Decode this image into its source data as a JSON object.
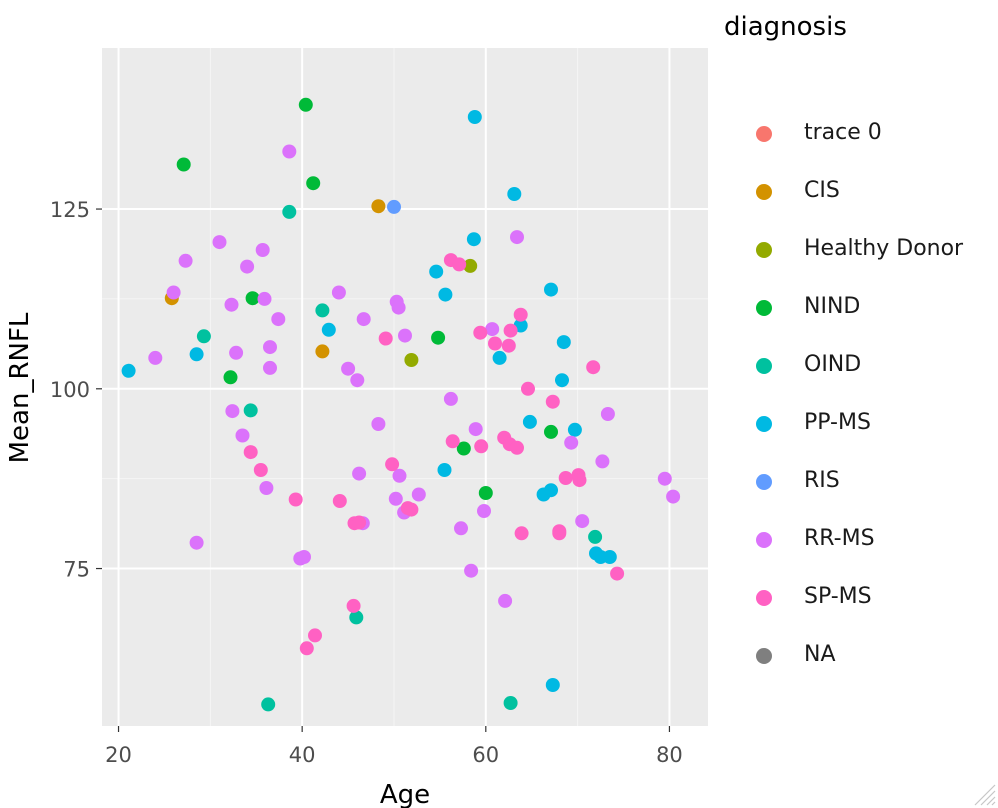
{
  "chart_data": {
    "type": "scatter",
    "xlabel": "Age",
    "ylabel": "Mean_RNFL",
    "xlim": [
      18.2,
      84.2
    ],
    "ylim": [
      53.1,
      147.4
    ],
    "xticks": [
      20,
      40,
      60,
      80
    ],
    "yticks": [
      75,
      100,
      125
    ],
    "grid": true,
    "legend_title": "diagnosis",
    "legend_position": "right",
    "legend": [
      {
        "name": "trace 0",
        "color": "#F8766D"
      },
      {
        "name": "CIS",
        "color": "#D39200"
      },
      {
        "name": "Healthy Donor",
        "color": "#93AA00"
      },
      {
        "name": "NIND",
        "color": "#00BA38"
      },
      {
        "name": "OIND",
        "color": "#00C19F"
      },
      {
        "name": "PP-MS",
        "color": "#00B9E3"
      },
      {
        "name": "RIS",
        "color": "#619CFF"
      },
      {
        "name": "RR-MS",
        "color": "#DB72FB"
      },
      {
        "name": "SP-MS",
        "color": "#FF61C3"
      },
      {
        "name": "NA",
        "color": "#7F7F7F"
      }
    ],
    "series": [
      {
        "name": "CIS",
        "color": "#D39200",
        "points": [
          [
            25.8,
            112.6
          ],
          [
            42.2,
            105.2
          ],
          [
            48.3,
            125.4
          ]
        ]
      },
      {
        "name": "Healthy Donor",
        "color": "#93AA00",
        "points": [
          [
            51.9,
            104.0
          ],
          [
            58.3,
            117.1
          ]
        ]
      },
      {
        "name": "NIND",
        "color": "#00BA38",
        "points": [
          [
            27.1,
            131.2
          ],
          [
            40.4,
            139.5
          ],
          [
            41.2,
            128.6
          ],
          [
            34.6,
            112.6
          ],
          [
            32.2,
            101.6
          ],
          [
            54.8,
            107.1
          ],
          [
            57.6,
            91.7
          ],
          [
            60.0,
            85.5
          ],
          [
            67.1,
            94.0
          ]
        ]
      },
      {
        "name": "OIND",
        "color": "#00C19F",
        "points": [
          [
            38.6,
            124.6
          ],
          [
            29.3,
            107.3
          ],
          [
            42.2,
            110.9
          ],
          [
            34.4,
            97.0
          ],
          [
            45.9,
            68.2
          ],
          [
            36.3,
            56.1
          ],
          [
            62.7,
            56.3
          ],
          [
            71.9,
            79.4
          ]
        ]
      },
      {
        "name": "PP-MS",
        "color": "#00B9E3",
        "points": [
          [
            21.1,
            102.5
          ],
          [
            28.5,
            104.8
          ],
          [
            42.9,
            108.2
          ],
          [
            58.8,
            137.8
          ],
          [
            63.1,
            127.1
          ],
          [
            58.7,
            120.8
          ],
          [
            54.6,
            116.3
          ],
          [
            55.6,
            113.1
          ],
          [
            63.8,
            108.8
          ],
          [
            61.5,
            104.3
          ],
          [
            67.1,
            113.8
          ],
          [
            68.5,
            106.5
          ],
          [
            68.3,
            101.2
          ],
          [
            69.7,
            94.3
          ],
          [
            64.8,
            95.4
          ],
          [
            55.5,
            88.7
          ],
          [
            66.3,
            85.3
          ],
          [
            67.1,
            85.9
          ],
          [
            72.0,
            77.1
          ],
          [
            72.5,
            76.6
          ],
          [
            73.5,
            76.6
          ],
          [
            67.3,
            58.8
          ]
        ]
      },
      {
        "name": "RIS",
        "color": "#619CFF",
        "points": [
          [
            50.0,
            125.3
          ]
        ]
      },
      {
        "name": "RR-MS",
        "color": "#DB72FB",
        "points": [
          [
            38.6,
            133.0
          ],
          [
            31.0,
            120.4
          ],
          [
            35.7,
            119.3
          ],
          [
            27.3,
            117.8
          ],
          [
            34.0,
            117.0
          ],
          [
            26.0,
            113.4
          ],
          [
            35.9,
            112.5
          ],
          [
            32.3,
            111.7
          ],
          [
            37.4,
            109.7
          ],
          [
            24.0,
            104.3
          ],
          [
            32.8,
            105.0
          ],
          [
            36.5,
            105.8
          ],
          [
            36.5,
            102.9
          ],
          [
            44.0,
            113.4
          ],
          [
            46.7,
            109.7
          ],
          [
            50.3,
            112.1
          ],
          [
            50.5,
            111.3
          ],
          [
            51.2,
            107.4
          ],
          [
            45.0,
            102.8
          ],
          [
            46.0,
            101.2
          ],
          [
            32.4,
            96.9
          ],
          [
            33.5,
            93.5
          ],
          [
            48.3,
            95.1
          ],
          [
            36.1,
            86.2
          ],
          [
            46.2,
            88.2
          ],
          [
            50.6,
            87.9
          ],
          [
            52.7,
            85.3
          ],
          [
            50.2,
            84.7
          ],
          [
            51.1,
            82.8
          ],
          [
            46.6,
            81.3
          ],
          [
            28.5,
            78.6
          ],
          [
            39.8,
            76.4
          ],
          [
            40.2,
            76.6
          ],
          [
            56.2,
            98.6
          ],
          [
            58.9,
            94.4
          ],
          [
            59.8,
            83.0
          ],
          [
            57.3,
            80.6
          ],
          [
            58.4,
            74.7
          ],
          [
            62.1,
            70.5
          ],
          [
            60.7,
            108.3
          ],
          [
            63.4,
            121.1
          ],
          [
            69.3,
            92.5
          ],
          [
            72.7,
            89.9
          ],
          [
            73.3,
            96.5
          ],
          [
            70.5,
            81.6
          ],
          [
            79.5,
            87.5
          ],
          [
            80.4,
            85.0
          ]
        ]
      },
      {
        "name": "SP-MS",
        "color": "#FF61C3",
        "points": [
          [
            34.4,
            91.2
          ],
          [
            35.5,
            88.7
          ],
          [
            39.3,
            84.6
          ],
          [
            44.1,
            84.4
          ],
          [
            45.7,
            81.3
          ],
          [
            46.2,
            81.4
          ],
          [
            49.1,
            107.0
          ],
          [
            49.8,
            89.5
          ],
          [
            51.5,
            83.4
          ],
          [
            51.9,
            83.2
          ],
          [
            45.6,
            69.8
          ],
          [
            40.5,
            63.9
          ],
          [
            41.4,
            65.7
          ],
          [
            56.2,
            117.9
          ],
          [
            57.1,
            117.3
          ],
          [
            59.4,
            107.8
          ],
          [
            61.0,
            106.3
          ],
          [
            62.5,
            106.0
          ],
          [
            62.7,
            108.1
          ],
          [
            63.8,
            110.3
          ],
          [
            64.6,
            100.0
          ],
          [
            56.4,
            92.7
          ],
          [
            59.5,
            92.0
          ],
          [
            62.0,
            93.2
          ],
          [
            62.6,
            92.3
          ],
          [
            63.4,
            91.8
          ],
          [
            67.3,
            98.2
          ],
          [
            68.7,
            87.6
          ],
          [
            70.1,
            88.0
          ],
          [
            70.2,
            87.3
          ],
          [
            68.0,
            80.2
          ],
          [
            68.0,
            79.9
          ],
          [
            63.9,
            79.9
          ],
          [
            71.7,
            103.0
          ],
          [
            74.3,
            74.3
          ]
        ]
      }
    ]
  }
}
